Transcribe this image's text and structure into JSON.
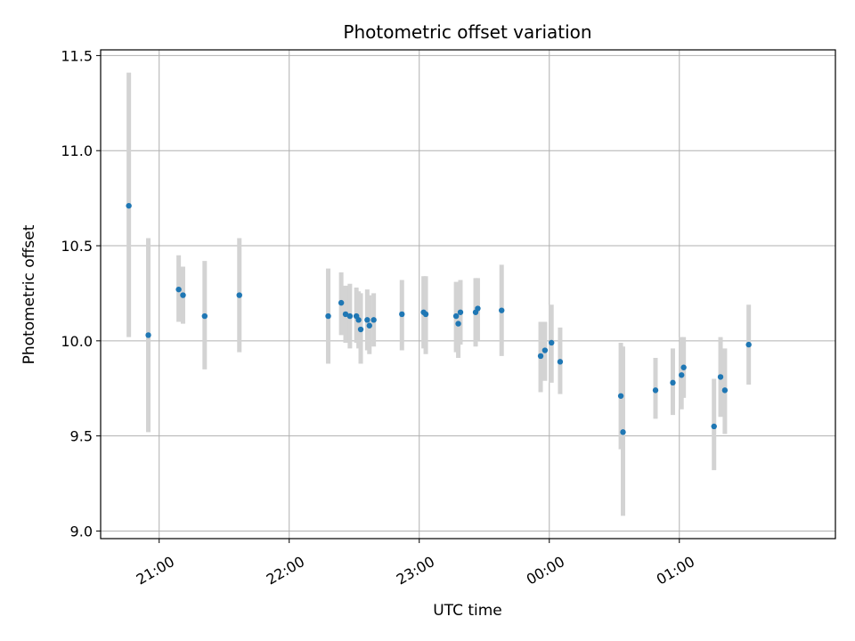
{
  "chart_data": {
    "type": "scatter",
    "title": "Photometric offset variation",
    "xlabel": "UTC time",
    "ylabel": "Photometric offset",
    "x_unit": "UTC time (HH:MM)",
    "xlim": [
      "20:33",
      "02:12"
    ],
    "ylim": [
      8.96,
      11.53
    ],
    "x_ticks": [
      "21:00",
      "22:00",
      "23:00",
      "00:00",
      "01:00"
    ],
    "y_ticks": [
      "9.0",
      "9.5",
      "10.0",
      "10.5",
      "11.0",
      "11.5"
    ],
    "grid": true,
    "legend": "none",
    "colors": {
      "marker": "#1f77b4",
      "errorbar": "#d3d3d3",
      "grid": "#b0b0b0"
    },
    "series": [
      {
        "points": [
          {
            "x": "20:46",
            "y": 10.71,
            "ylow": 10.02,
            "yhigh": 11.41
          },
          {
            "x": "20:55",
            "y": 10.03,
            "ylow": 9.52,
            "yhigh": 10.54
          },
          {
            "x": "21:09",
            "y": 10.27,
            "ylow": 10.1,
            "yhigh": 10.45
          },
          {
            "x": "21:11",
            "y": 10.24,
            "ylow": 10.09,
            "yhigh": 10.39
          },
          {
            "x": "21:21",
            "y": 10.13,
            "ylow": 9.85,
            "yhigh": 10.42
          },
          {
            "x": "21:37",
            "y": 10.24,
            "ylow": 9.94,
            "yhigh": 10.54
          },
          {
            "x": "22:18",
            "y": 10.13,
            "ylow": 9.88,
            "yhigh": 10.38
          },
          {
            "x": "22:24",
            "y": 10.2,
            "ylow": 10.03,
            "yhigh": 10.36
          },
          {
            "x": "22:26",
            "y": 10.14,
            "ylow": 9.99,
            "yhigh": 10.29
          },
          {
            "x": "22:28",
            "y": 10.13,
            "ylow": 9.96,
            "yhigh": 10.3
          },
          {
            "x": "22:31",
            "y": 10.13,
            "ylow": 9.99,
            "yhigh": 10.28
          },
          {
            "x": "22:32",
            "y": 10.11,
            "ylow": 9.96,
            "yhigh": 10.26
          },
          {
            "x": "22:33",
            "y": 10.06,
            "ylow": 9.88,
            "yhigh": 10.25
          },
          {
            "x": "22:36",
            "y": 10.11,
            "ylow": 9.95,
            "yhigh": 10.27
          },
          {
            "x": "22:37",
            "y": 10.08,
            "ylow": 9.93,
            "yhigh": 10.24
          },
          {
            "x": "22:39",
            "y": 10.11,
            "ylow": 9.97,
            "yhigh": 10.25
          },
          {
            "x": "22:52",
            "y": 10.14,
            "ylow": 9.95,
            "yhigh": 10.32
          },
          {
            "x": "23:02",
            "y": 10.15,
            "ylow": 9.96,
            "yhigh": 10.34
          },
          {
            "x": "23:03",
            "y": 10.14,
            "ylow": 9.93,
            "yhigh": 10.34
          },
          {
            "x": "23:17",
            "y": 10.13,
            "ylow": 9.94,
            "yhigh": 10.31
          },
          {
            "x": "23:18",
            "y": 10.09,
            "ylow": 9.91,
            "yhigh": 10.27
          },
          {
            "x": "23:19",
            "y": 10.15,
            "ylow": 9.98,
            "yhigh": 10.32
          },
          {
            "x": "23:26",
            "y": 10.15,
            "ylow": 9.97,
            "yhigh": 10.33
          },
          {
            "x": "23:27",
            "y": 10.17,
            "ylow": 10.0,
            "yhigh": 10.33
          },
          {
            "x": "23:38",
            "y": 10.16,
            "ylow": 9.92,
            "yhigh": 10.4
          },
          {
            "x": "23:56",
            "y": 9.92,
            "ylow": 9.73,
            "yhigh": 10.1
          },
          {
            "x": "23:58",
            "y": 9.95,
            "ylow": 9.79,
            "yhigh": 10.1
          },
          {
            "x": "00:01",
            "y": 9.99,
            "ylow": 9.78,
            "yhigh": 10.19
          },
          {
            "x": "00:05",
            "y": 9.89,
            "ylow": 9.72,
            "yhigh": 10.07
          },
          {
            "x": "00:33",
            "y": 9.71,
            "ylow": 9.43,
            "yhigh": 9.99
          },
          {
            "x": "00:34",
            "y": 9.52,
            "ylow": 9.08,
            "yhigh": 9.97
          },
          {
            "x": "00:49",
            "y": 9.74,
            "ylow": 9.59,
            "yhigh": 9.91
          },
          {
            "x": "00:57",
            "y": 9.78,
            "ylow": 9.61,
            "yhigh": 9.96
          },
          {
            "x": "01:01",
            "y": 9.82,
            "ylow": 9.64,
            "yhigh": 10.02
          },
          {
            "x": "01:02",
            "y": 9.86,
            "ylow": 9.7,
            "yhigh": 10.02
          },
          {
            "x": "01:16",
            "y": 9.55,
            "ylow": 9.32,
            "yhigh": 9.8
          },
          {
            "x": "01:19",
            "y": 9.81,
            "ylow": 9.6,
            "yhigh": 10.02
          },
          {
            "x": "01:21",
            "y": 9.74,
            "ylow": 9.51,
            "yhigh": 9.96
          },
          {
            "x": "01:32",
            "y": 9.98,
            "ylow": 9.77,
            "yhigh": 10.19
          }
        ]
      }
    ]
  }
}
